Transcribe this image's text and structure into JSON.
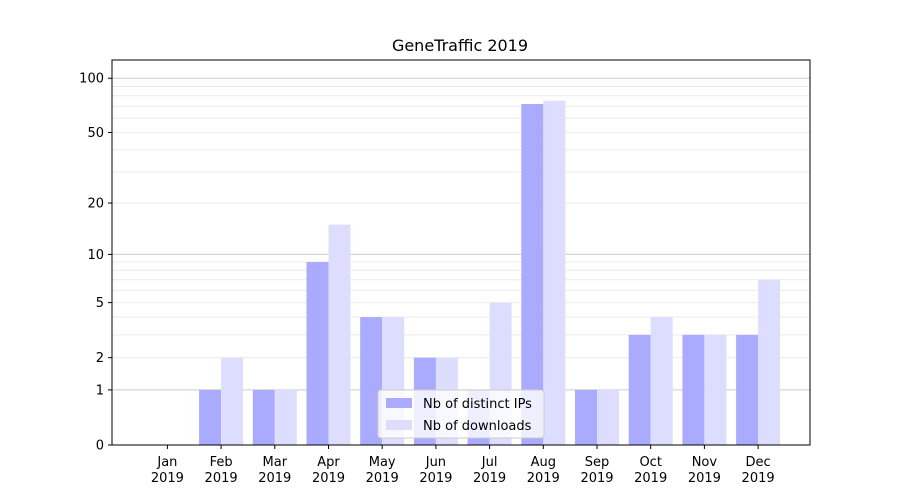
{
  "chart_data": {
    "type": "bar",
    "title": "GeneTraffic 2019",
    "xlabel": "",
    "ylabel": "",
    "yscale": "log10(1+x)",
    "ylim": [
      0,
      125
    ],
    "yticks": [
      0,
      1,
      2,
      5,
      10,
      20,
      50,
      100
    ],
    "ytick_labels": [
      "0",
      "1",
      "2",
      "5",
      "10",
      "20",
      "50",
      "100"
    ],
    "categories": [
      "Jan\n2019",
      "Feb\n2019",
      "Mar\n2019",
      "Apr\n2019",
      "May\n2019",
      "Jun\n2019",
      "Jul\n2019",
      "Aug\n2019",
      "Sep\n2019",
      "Oct\n2019",
      "Nov\n2019",
      "Dec\n2019"
    ],
    "category_lines": [
      [
        "Jan",
        "2019"
      ],
      [
        "Feb",
        "2019"
      ],
      [
        "Mar",
        "2019"
      ],
      [
        "Apr",
        "2019"
      ],
      [
        "May",
        "2019"
      ],
      [
        "Jun",
        "2019"
      ],
      [
        "Jul",
        "2019"
      ],
      [
        "Aug",
        "2019"
      ],
      [
        "Sep",
        "2019"
      ],
      [
        "Oct",
        "2019"
      ],
      [
        "Nov",
        "2019"
      ],
      [
        "Dec",
        "2019"
      ]
    ],
    "series": [
      {
        "name": "Nb of distinct IPs",
        "color": "#aaaaff",
        "values": [
          0,
          1,
          1,
          9,
          4,
          2,
          1,
          72,
          1,
          3,
          3,
          3
        ]
      },
      {
        "name": "Nb of downloads",
        "color": "#ddddff",
        "values": [
          0,
          2,
          1,
          15,
          4,
          2,
          5,
          75,
          1,
          4,
          3,
          7
        ]
      }
    ],
    "legend": "lower-center",
    "grid": true
  }
}
